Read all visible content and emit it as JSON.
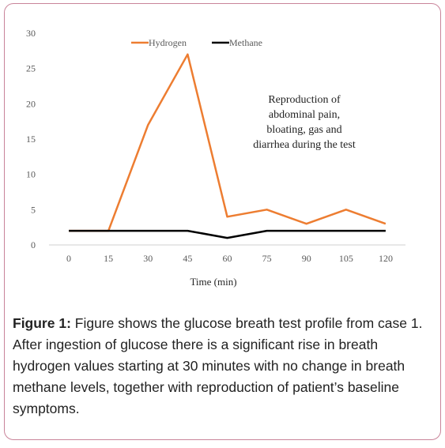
{
  "chart_data": {
    "type": "line",
    "x": [
      0,
      15,
      30,
      45,
      60,
      75,
      90,
      105,
      120
    ],
    "series": [
      {
        "name": "Hydrogen",
        "color": "#ed7d31",
        "values": [
          2,
          2,
          17,
          27,
          4,
          5,
          3,
          5,
          3
        ]
      },
      {
        "name": "Methane",
        "color": "#000000",
        "values": [
          2,
          2,
          2,
          2,
          1,
          2,
          2,
          2,
          2
        ]
      }
    ],
    "xlabel": "Time (min)",
    "ylabel": "",
    "ylim": [
      0,
      30
    ],
    "yticks": [
      0,
      5,
      10,
      15,
      20,
      25,
      30
    ],
    "grid": false,
    "legend_position": "top",
    "annotation": [
      "Reproduction of",
      "abdominal pain,",
      "bloating, gas and",
      "diarrhea during the test"
    ]
  },
  "caption": {
    "label": "Figure 1:",
    "text": "Figure shows the glucose breath test profile from case 1. After ingestion of glucose there is a significant rise in breath hydrogen values starting at 30 minutes with no change in breath methane levels, together with reproduction of patient’s baseline symptoms."
  }
}
